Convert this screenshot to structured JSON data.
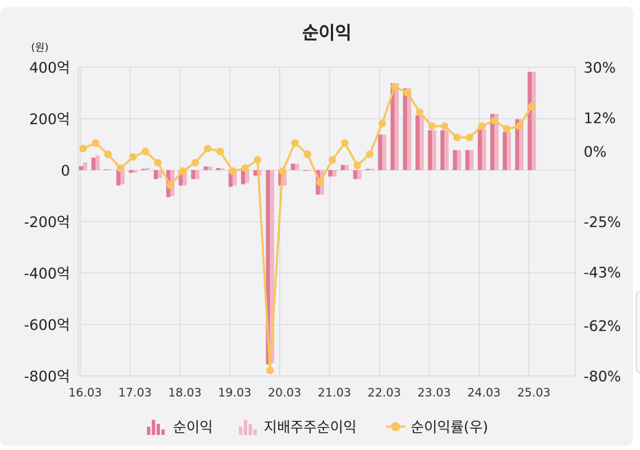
{
  "chart_data": {
    "type": "bar",
    "title": "순이익",
    "y_unit": "(원)",
    "ylim": [
      -800,
      400
    ],
    "y2lim": [
      -80,
      30
    ],
    "y_ticks": [
      "400억",
      "200억",
      "0",
      "-200억",
      "-400억",
      "-600억",
      "-800억"
    ],
    "y_tick_values": [
      400,
      200,
      0,
      -200,
      -400,
      -600,
      -800
    ],
    "y2_ticks": [
      "30%",
      "12%",
      "0%",
      "-25%",
      "-43%",
      "-62%",
      "-80%"
    ],
    "y2_tick_values": [
      30,
      12,
      0,
      -25,
      -43,
      -62,
      -80
    ],
    "x_ticks": [
      "16.03",
      "17.03",
      "18.03",
      "19.03",
      "20.03",
      "21.03",
      "22.03",
      "23.03",
      "24.03",
      "25.03"
    ],
    "categories": [
      "16.03",
      "16.06",
      "16.09",
      "16.12",
      "17.03",
      "17.06",
      "17.09",
      "17.12",
      "18.03",
      "18.06",
      "18.09",
      "18.12",
      "19.03",
      "19.06",
      "19.09",
      "19.12",
      "20.03",
      "20.06",
      "20.09",
      "20.12",
      "21.03",
      "21.06",
      "21.09",
      "21.12",
      "22.03",
      "22.06",
      "22.09",
      "22.12",
      "23.03",
      "23.06",
      "23.09",
      "23.12",
      "24.03",
      "24.06",
      "24.09",
      "24.12",
      "25.03"
    ],
    "series": [
      {
        "name": "순이익",
        "color": "#e07a93",
        "values": [
          15,
          48,
          3,
          -60,
          -10,
          5,
          -35,
          -105,
          -60,
          -35,
          14,
          8,
          -65,
          -55,
          -22,
          -755,
          -60,
          25,
          -3,
          -95,
          -25,
          20,
          -35,
          5,
          138,
          338,
          318,
          213,
          155,
          155,
          78,
          78,
          158,
          218,
          148,
          198,
          382
        ]
      },
      {
        "name": "지배주주순이익",
        "color": "#f2b6c6",
        "values": [
          30,
          57,
          3,
          -55,
          -10,
          9,
          -30,
          -100,
          -60,
          -35,
          14,
          7,
          -60,
          -50,
          -20,
          -750,
          -60,
          25,
          -3,
          -95,
          -25,
          20,
          -35,
          5,
          138,
          338,
          318,
          213,
          155,
          155,
          78,
          78,
          158,
          218,
          148,
          198,
          382
        ]
      },
      {
        "name": "순이익률(우)",
        "color": "#f7c55b",
        "type": "line",
        "values": [
          1,
          3,
          -1,
          -6,
          -2,
          0,
          -4,
          -12,
          -7,
          -4,
          1,
          0,
          -7,
          -6,
          -3,
          -78,
          -7,
          3,
          -1,
          -11,
          -3,
          3,
          -5,
          -1,
          10,
          23,
          21,
          14,
          9,
          9,
          5,
          5,
          9,
          11,
          8,
          9,
          16
        ]
      }
    ],
    "legend": [
      "순이익",
      "지배주주순이익",
      "순이익률(우)"
    ],
    "legend_position": "bottom",
    "grid": true
  }
}
